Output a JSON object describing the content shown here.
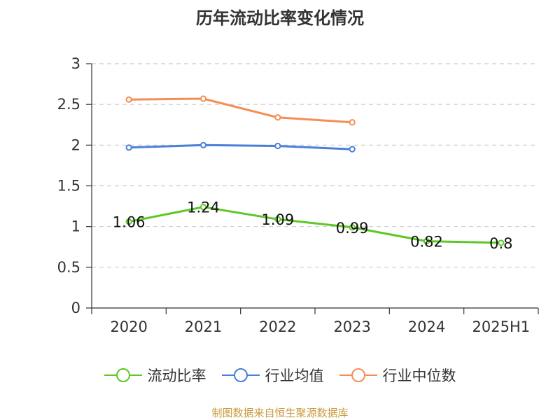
{
  "chart_data": {
    "type": "line",
    "title": "历年流动比率变化情况",
    "categories": [
      "2020",
      "2021",
      "2022",
      "2023",
      "2024",
      "2025H1"
    ],
    "y_ticks": [
      "0",
      "0.5",
      "1",
      "1.5",
      "2",
      "2.5",
      "3"
    ],
    "ylim": [
      0,
      3
    ],
    "grid": true,
    "legend_position": "bottom",
    "series": [
      {
        "name": "流动比率",
        "color": "#5ec726",
        "values": [
          1.06,
          1.24,
          1.09,
          0.99,
          0.82,
          0.8
        ],
        "labels": [
          "1.06",
          "1.24",
          "1.09",
          "0.99",
          "0.82",
          "0.8"
        ]
      },
      {
        "name": "行业均值",
        "color": "#4a7fd8",
        "values": [
          1.97,
          2.0,
          1.99,
          1.95,
          null,
          null
        ]
      },
      {
        "name": "行业中位数",
        "color": "#f58d55",
        "values": [
          2.56,
          2.57,
          2.34,
          2.28,
          null,
          null
        ]
      }
    ],
    "source": "制图数据来自恒生聚源数据库"
  }
}
